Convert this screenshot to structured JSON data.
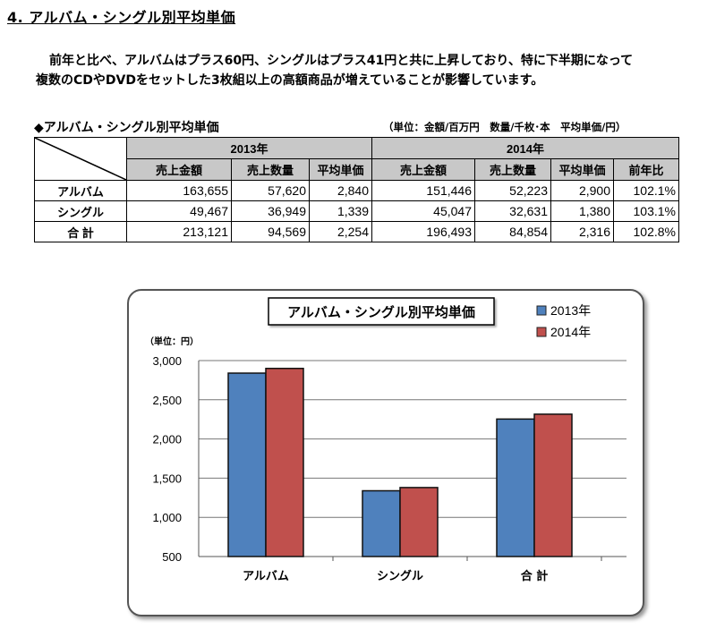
{
  "heading": "4. アルバム・シングル別平均単価",
  "paragraph": [
    "前年と比べ、アルバムはプラス60円、シングルはプラス41円と共に上昇しており、特に下半期になって",
    "複数のCDやDVDをセットした3枚組以上の高額商品が増えていることが影響しています。"
  ],
  "table": {
    "title": "◆アルバム・シングル別平均単価",
    "unit": "（単位：金額/百万円　数量/千枚･本　平均単価/円）",
    "years": [
      "2013年",
      "2014年"
    ],
    "columns_2013": [
      "売上金額",
      "売上数量",
      "平均単価"
    ],
    "columns_2014": [
      "売上金額",
      "売上数量",
      "平均単価",
      "前年比"
    ],
    "rows": [
      {
        "label": "アルバム",
        "cells": [
          "163,655",
          "57,620",
          "2,840",
          "151,446",
          "52,223",
          "2,900",
          "102.1%"
        ]
      },
      {
        "label": "シングル",
        "cells": [
          "49,467",
          "36,949",
          "1,339",
          "45,047",
          "32,631",
          "1,380",
          "103.1%"
        ]
      },
      {
        "label": "合 計",
        "cells": [
          "213,121",
          "94,569",
          "2,254",
          "196,493",
          "84,854",
          "2,316",
          "102.8%"
        ]
      }
    ]
  },
  "chart_data": {
    "type": "bar",
    "title": "アルバム・シングル別平均単価",
    "ylabel": "（単位：円）",
    "categories": [
      "アルバム",
      "シングル",
      "合 計"
    ],
    "series": [
      {
        "name": "2013年",
        "values": [
          2840,
          1339,
          2254
        ],
        "color": "#4f81bd"
      },
      {
        "name": "2014年",
        "values": [
          2900,
          1380,
          2316
        ],
        "color": "#c0504d"
      }
    ],
    "ylim": [
      500,
      3000
    ],
    "yticks": [
      "500",
      "1,000",
      "1,500",
      "2,000",
      "2,500",
      "3,000"
    ],
    "grid": true,
    "legend": "top-right"
  }
}
